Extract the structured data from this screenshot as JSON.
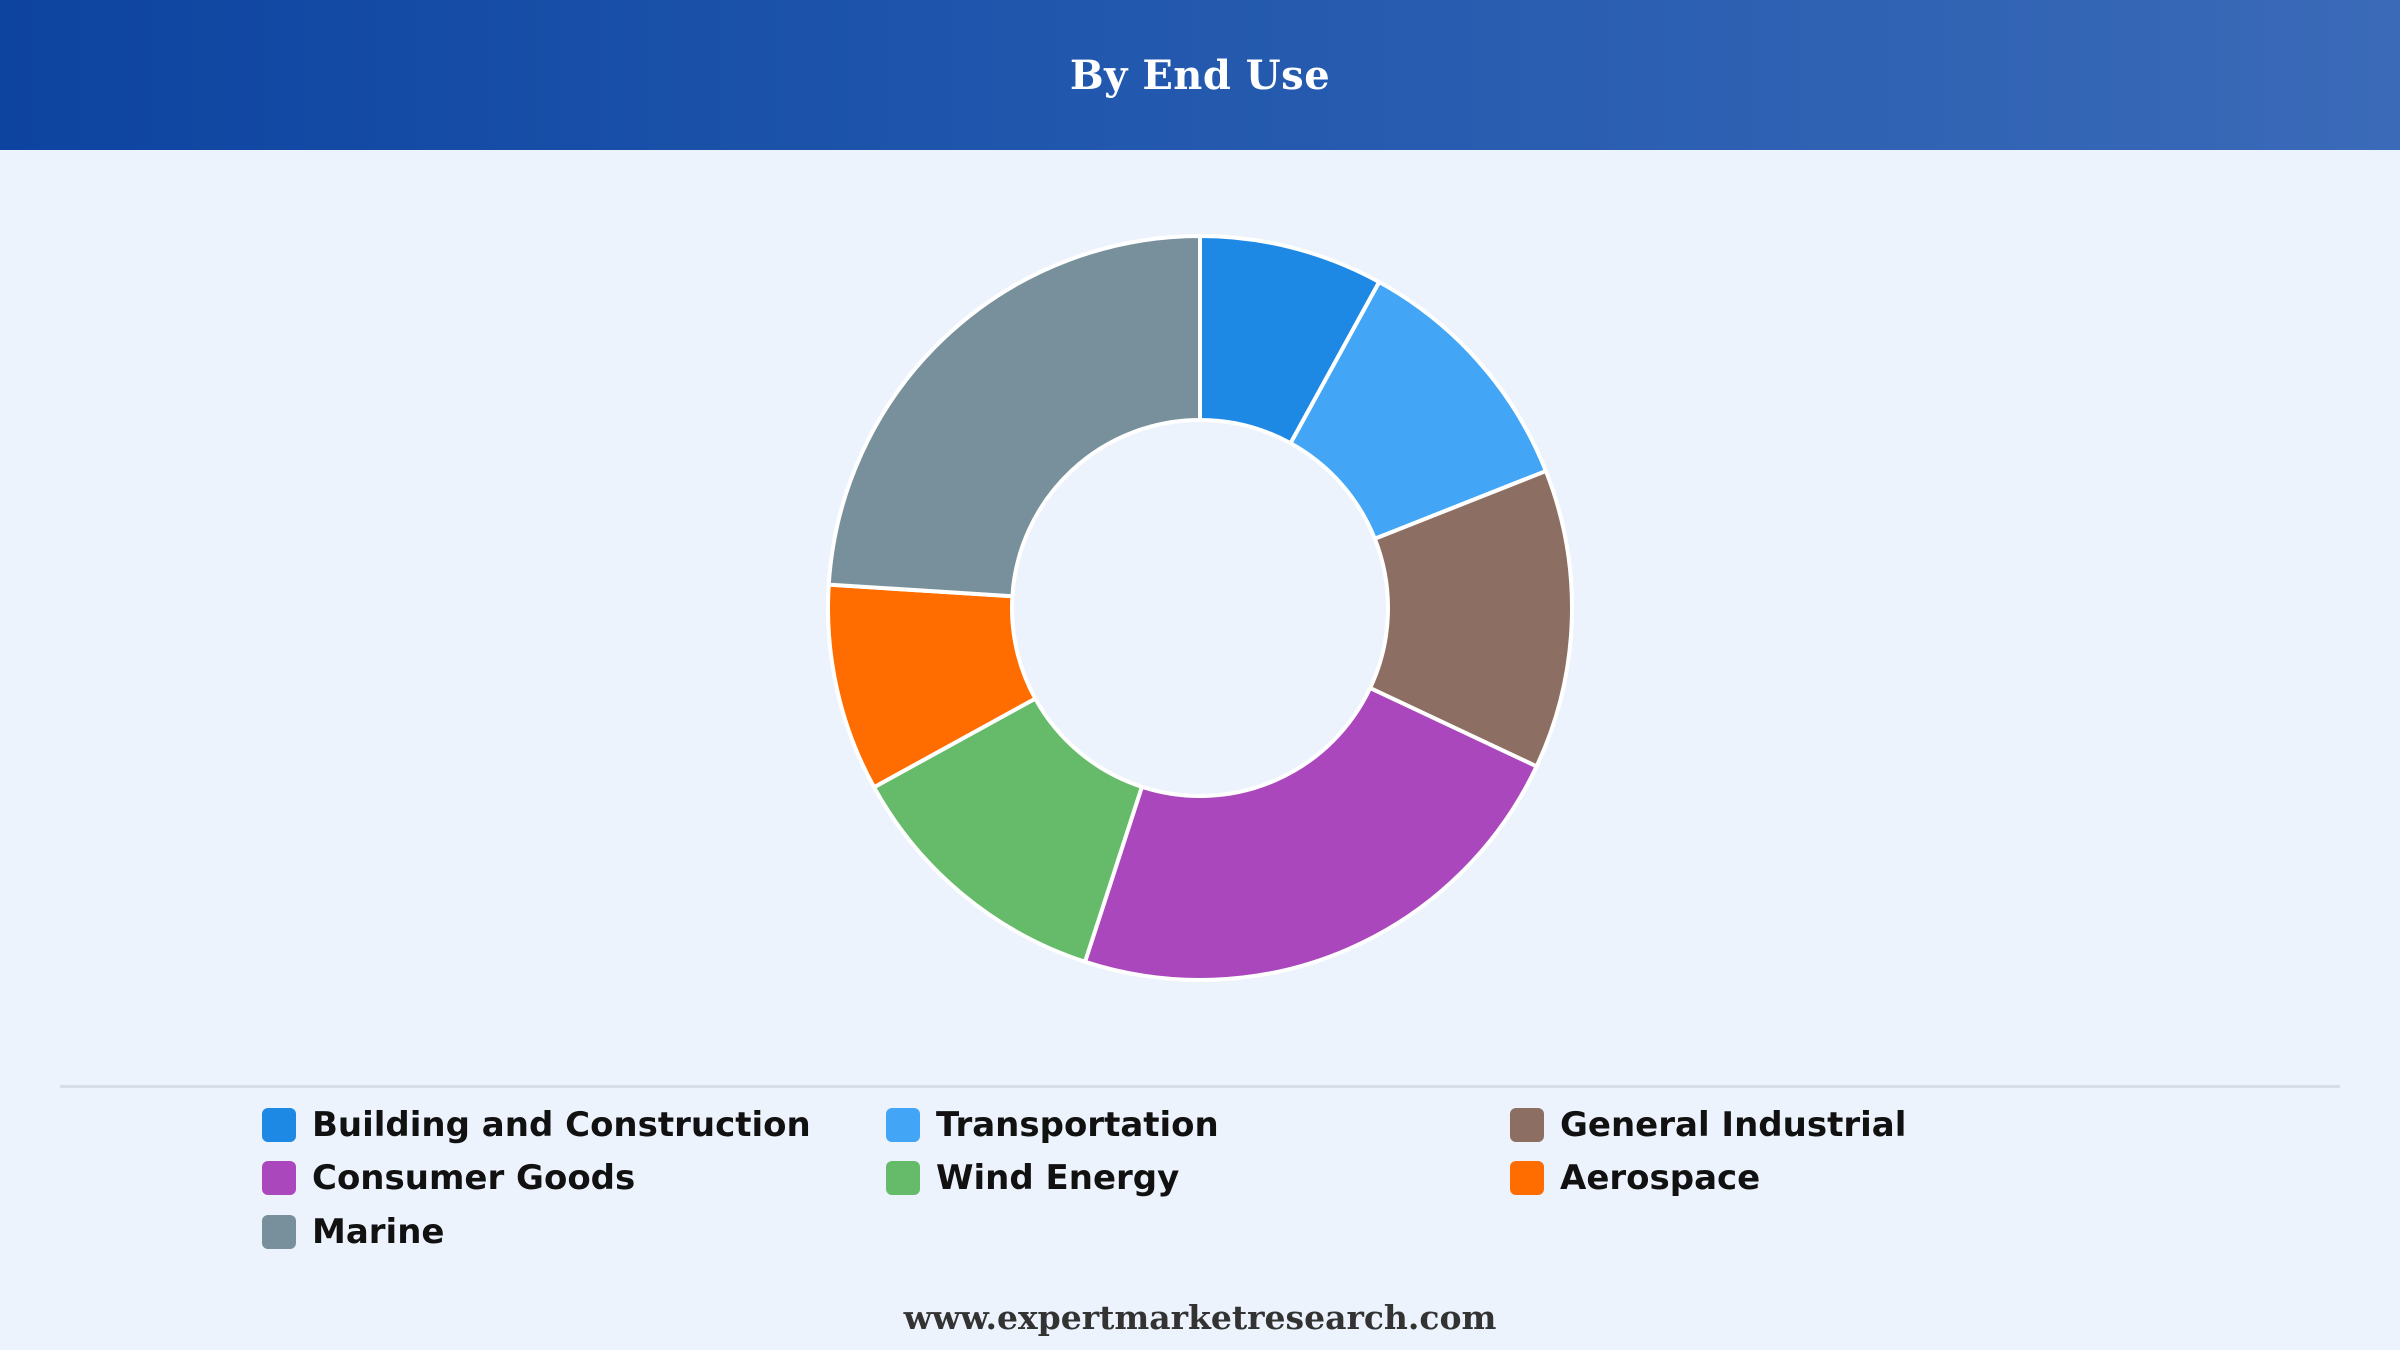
{
  "header": {
    "title": "By End Use"
  },
  "chart_data": {
    "type": "pie",
    "variant": "donut",
    "title": "By End Use",
    "categories": [
      "Building and Construction",
      "Transportation",
      "General Industrial",
      "Consumer Goods",
      "Wind Energy",
      "Aerospace",
      "Marine"
    ],
    "values": [
      8,
      11,
      13,
      23,
      12,
      9,
      24
    ],
    "colors": [
      "#1e88e5",
      "#42a5f5",
      "#8d6e63",
      "#ab47bc",
      "#66bb6a",
      "#ff6d00",
      "#78909c"
    ],
    "legend_position": "bottom"
  },
  "legend": {
    "items": [
      {
        "label": "Building and Construction",
        "color": "#1e88e5"
      },
      {
        "label": "Transportation",
        "color": "#42a5f5"
      },
      {
        "label": "General Industrial",
        "color": "#8d6e63"
      },
      {
        "label": "Consumer Goods",
        "color": "#ab47bc"
      },
      {
        "label": "Wind Energy",
        "color": "#66bb6a"
      },
      {
        "label": "Aerospace",
        "color": "#ff6d00"
      },
      {
        "label": "Marine",
        "color": "#78909c"
      }
    ]
  },
  "footer": {
    "source": "www.expertmarketresearch.com"
  }
}
